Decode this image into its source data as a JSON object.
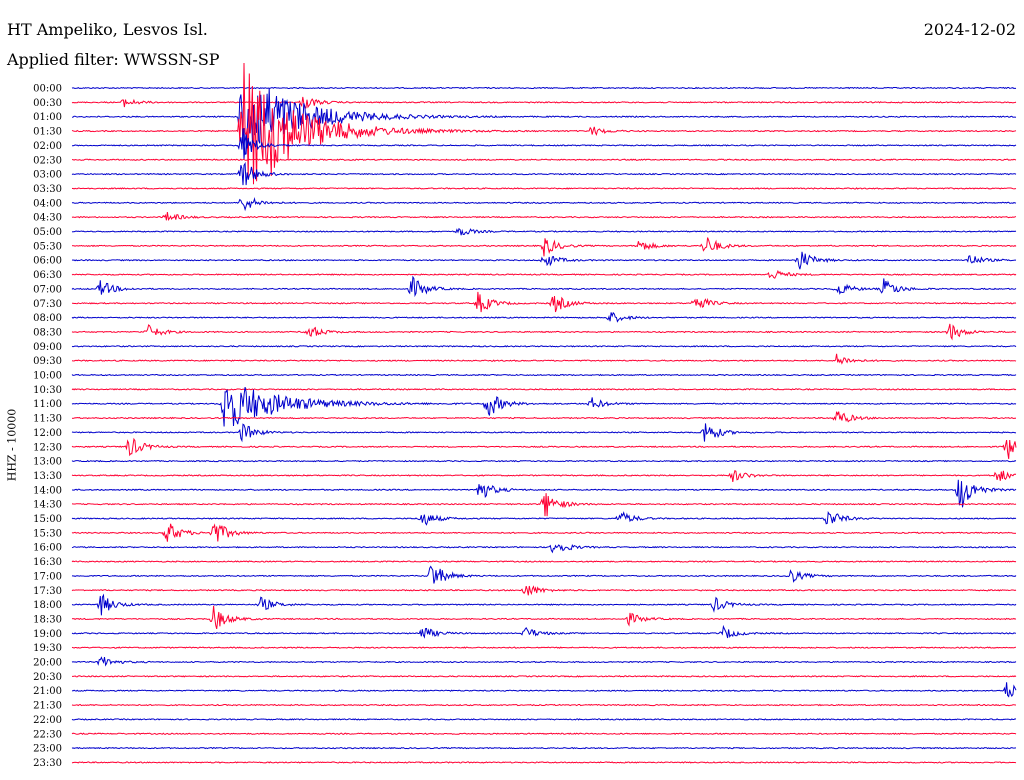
{
  "header": {
    "station": "HT Ampeliko, Lesvos Isl.",
    "date": "2024-12-02",
    "filter_label": "Applied filter:",
    "filter_value": "WWSSN-SP"
  },
  "colors": {
    "trace_a": "#0000cc",
    "trace_b": "#ff0033"
  },
  "chart_data": {
    "type": "line",
    "title": "HT Ampeliko, Lesvos Isl.",
    "ylabel": "HHZ - 10000",
    "row_labels": [
      "00:00",
      "00:30",
      "01:00",
      "01:30",
      "02:00",
      "02:30",
      "03:00",
      "03:30",
      "04:00",
      "04:30",
      "05:00",
      "05:30",
      "06:00",
      "06:30",
      "07:00",
      "07:30",
      "08:00",
      "08:30",
      "09:00",
      "09:30",
      "10:00",
      "10:30",
      "11:00",
      "11:30",
      "12:00",
      "12:30",
      "13:00",
      "13:30",
      "14:00",
      "14:30",
      "15:00",
      "15:30",
      "16:00",
      "16:30",
      "17:00",
      "17:30",
      "18:00",
      "18:30",
      "19:00",
      "19:30",
      "20:00",
      "20:30",
      "21:00",
      "21:30",
      "22:00",
      "22:30",
      "23:00",
      "23:30"
    ],
    "series_colors": [
      "#0000cc",
      "#ff0033"
    ],
    "events": [
      {
        "row": 1,
        "t": 0.245,
        "amp": 0.6
      },
      {
        "row": 1,
        "t": 0.055,
        "amp": 0.35
      },
      {
        "row": 2,
        "t": 0.18,
        "amp": 4.0
      },
      {
        "row": 3,
        "t": 0.18,
        "amp": 5.5
      },
      {
        "row": 3,
        "t": 0.21,
        "amp": 0.6
      },
      {
        "row": 3,
        "t": 0.55,
        "amp": 0.4
      },
      {
        "row": 4,
        "t": 0.18,
        "amp": 1.4
      },
      {
        "row": 6,
        "t": 0.18,
        "amp": 1.3
      },
      {
        "row": 8,
        "t": 0.18,
        "amp": 0.8
      },
      {
        "row": 9,
        "t": 0.1,
        "amp": 0.4
      },
      {
        "row": 10,
        "t": 0.41,
        "amp": 0.4
      },
      {
        "row": 11,
        "t": 0.5,
        "amp": 0.8
      },
      {
        "row": 11,
        "t": 0.67,
        "amp": 0.9
      },
      {
        "row": 11,
        "t": 0.6,
        "amp": 0.5
      },
      {
        "row": 12,
        "t": 0.5,
        "amp": 0.6
      },
      {
        "row": 12,
        "t": 0.77,
        "amp": 0.9
      },
      {
        "row": 12,
        "t": 0.95,
        "amp": 0.5
      },
      {
        "row": 13,
        "t": 0.74,
        "amp": 0.5
      },
      {
        "row": 14,
        "t": 0.03,
        "amp": 0.7
      },
      {
        "row": 14,
        "t": 0.36,
        "amp": 1.0
      },
      {
        "row": 14,
        "t": 0.81,
        "amp": 0.6
      },
      {
        "row": 14,
        "t": 0.86,
        "amp": 0.8
      },
      {
        "row": 15,
        "t": 0.43,
        "amp": 0.9
      },
      {
        "row": 15,
        "t": 0.51,
        "amp": 0.8
      },
      {
        "row": 15,
        "t": 0.66,
        "amp": 0.7
      },
      {
        "row": 16,
        "t": 0.57,
        "amp": 0.5
      },
      {
        "row": 17,
        "t": 0.08,
        "amp": 0.6
      },
      {
        "row": 17,
        "t": 0.25,
        "amp": 0.6
      },
      {
        "row": 17,
        "t": 0.93,
        "amp": 0.7
      },
      {
        "row": 19,
        "t": 0.81,
        "amp": 0.5
      },
      {
        "row": 22,
        "t": 0.16,
        "amp": 2.2
      },
      {
        "row": 22,
        "t": 0.44,
        "amp": 1.2
      },
      {
        "row": 22,
        "t": 0.55,
        "amp": 0.5
      },
      {
        "row": 23,
        "t": 0.81,
        "amp": 0.7
      },
      {
        "row": 24,
        "t": 0.18,
        "amp": 0.8
      },
      {
        "row": 24,
        "t": 0.67,
        "amp": 1.0
      },
      {
        "row": 25,
        "t": 0.06,
        "amp": 0.9
      },
      {
        "row": 25,
        "t": 0.99,
        "amp": 1.1
      },
      {
        "row": 27,
        "t": 0.7,
        "amp": 0.5
      },
      {
        "row": 27,
        "t": 0.98,
        "amp": 0.6
      },
      {
        "row": 28,
        "t": 0.43,
        "amp": 1.0
      },
      {
        "row": 28,
        "t": 0.94,
        "amp": 1.8
      },
      {
        "row": 29,
        "t": 0.5,
        "amp": 1.2
      },
      {
        "row": 30,
        "t": 0.37,
        "amp": 0.7
      },
      {
        "row": 30,
        "t": 0.58,
        "amp": 0.6
      },
      {
        "row": 30,
        "t": 0.8,
        "amp": 0.8
      },
      {
        "row": 31,
        "t": 0.1,
        "amp": 1.0
      },
      {
        "row": 31,
        "t": 0.15,
        "amp": 1.1
      },
      {
        "row": 32,
        "t": 0.51,
        "amp": 0.7
      },
      {
        "row": 34,
        "t": 0.38,
        "amp": 1.2
      },
      {
        "row": 34,
        "t": 0.76,
        "amp": 0.6
      },
      {
        "row": 35,
        "t": 0.48,
        "amp": 0.6
      },
      {
        "row": 36,
        "t": 0.03,
        "amp": 0.9
      },
      {
        "row": 36,
        "t": 0.2,
        "amp": 0.6
      },
      {
        "row": 36,
        "t": 0.68,
        "amp": 0.6
      },
      {
        "row": 37,
        "t": 0.15,
        "amp": 1.0
      },
      {
        "row": 37,
        "t": 0.59,
        "amp": 0.5
      },
      {
        "row": 38,
        "t": 0.37,
        "amp": 0.6
      },
      {
        "row": 38,
        "t": 0.48,
        "amp": 0.5
      },
      {
        "row": 38,
        "t": 0.69,
        "amp": 0.5
      },
      {
        "row": 40,
        "t": 0.03,
        "amp": 0.5
      },
      {
        "row": 42,
        "t": 0.99,
        "amp": 0.7
      }
    ]
  }
}
